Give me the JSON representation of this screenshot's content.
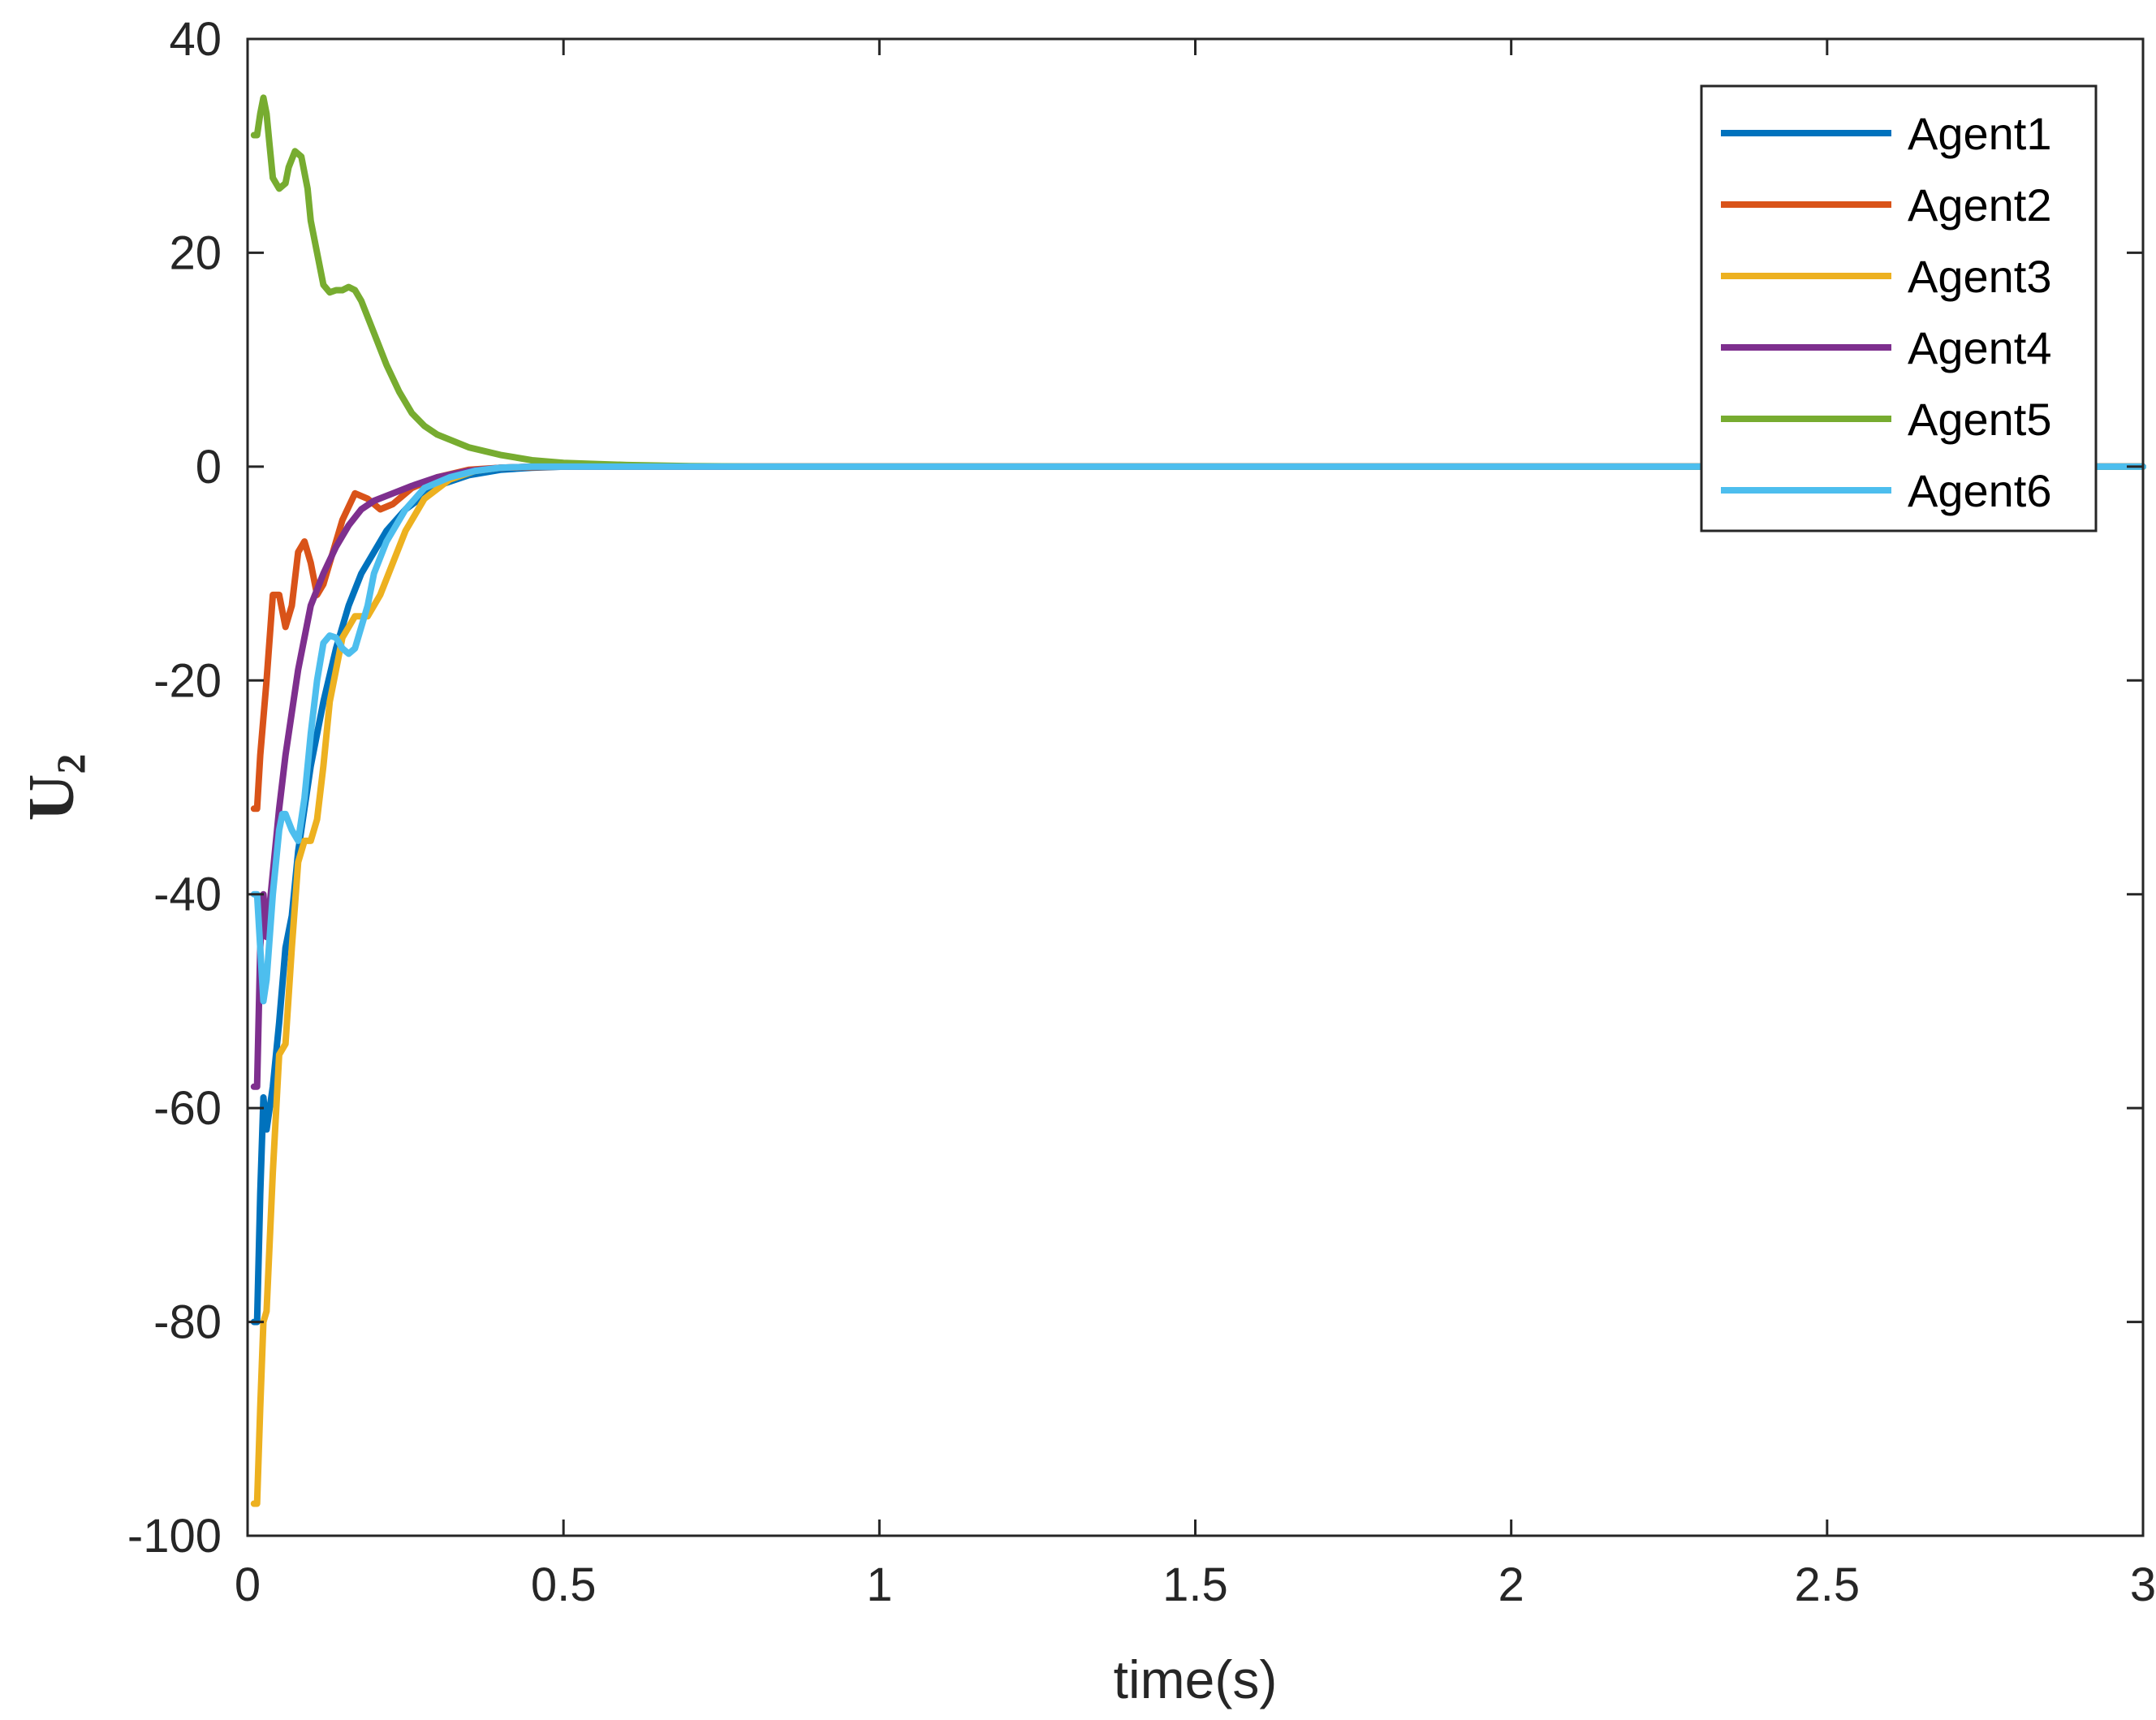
{
  "chart_data": {
    "type": "line",
    "xlabel": "time(s)",
    "ylabel": "U",
    "ylabel_subscript": "2",
    "xlim": [
      0,
      3
    ],
    "ylim": [
      -100,
      40
    ],
    "xticks": [
      0,
      0.5,
      1,
      1.5,
      2,
      2.5,
      3
    ],
    "xtick_labels": [
      "0",
      "0.5",
      "1",
      "1.5",
      "2",
      "2.5",
      "3"
    ],
    "yticks": [
      -100,
      -80,
      -60,
      -40,
      -20,
      0,
      20,
      40
    ],
    "ytick_labels": [
      "-100",
      "-80",
      "-60",
      "-40",
      "-20",
      "0",
      "20",
      "40"
    ],
    "grid": false,
    "legend_position": "top-right",
    "series": [
      {
        "name": "Agent1",
        "color": "#0072BD",
        "x": [
          0.01,
          0.015,
          0.02,
          0.025,
          0.03,
          0.04,
          0.05,
          0.06,
          0.07,
          0.08,
          0.1,
          0.12,
          0.14,
          0.16,
          0.18,
          0.2,
          0.22,
          0.25,
          0.3,
          0.35,
          0.4,
          0.45,
          0.5,
          0.6,
          0.7,
          0.8,
          1.0,
          1.5,
          2.0,
          2.5,
          3.0
        ],
        "y": [
          -80,
          -80,
          -68,
          -59,
          -62,
          -58,
          -52,
          -45,
          -42,
          -36,
          -28,
          -22,
          -17,
          -13,
          -10,
          -8,
          -6,
          -4,
          -1.8,
          -0.8,
          -0.3,
          -0.1,
          0,
          0,
          0,
          0,
          0,
          0,
          0,
          0,
          0
        ]
      },
      {
        "name": "Agent2",
        "color": "#D95319",
        "x": [
          0.01,
          0.015,
          0.02,
          0.03,
          0.04,
          0.05,
          0.06,
          0.07,
          0.08,
          0.09,
          0.1,
          0.11,
          0.12,
          0.13,
          0.15,
          0.17,
          0.19,
          0.21,
          0.23,
          0.26,
          0.3,
          0.35,
          0.4,
          0.5,
          0.6,
          1.0,
          2.0,
          3.0
        ],
        "y": [
          -32,
          -32,
          -27,
          -20,
          -12,
          -12,
          -15,
          -13,
          -8,
          -7,
          -9,
          -12,
          -11,
          -9,
          -5,
          -2.5,
          -3,
          -4,
          -3.5,
          -2,
          -1,
          -0.3,
          -0.1,
          0,
          0,
          0,
          0,
          0
        ]
      },
      {
        "name": "Agent3",
        "color": "#EDB120",
        "x": [
          0.01,
          0.015,
          0.02,
          0.025,
          0.03,
          0.04,
          0.05,
          0.06,
          0.07,
          0.08,
          0.09,
          0.1,
          0.11,
          0.12,
          0.13,
          0.15,
          0.17,
          0.19,
          0.21,
          0.23,
          0.25,
          0.28,
          0.32,
          0.36,
          0.4,
          0.45,
          0.5,
          0.6,
          1.0,
          2.0,
          3.0
        ],
        "y": [
          -97,
          -97,
          -88,
          -80,
          -79,
          -66,
          -55,
          -54,
          -45,
          -37,
          -35,
          -35,
          -33,
          -28,
          -22,
          -16,
          -14,
          -14,
          -12,
          -9,
          -6,
          -3,
          -1.2,
          -0.4,
          -0.1,
          0,
          0,
          0,
          0,
          0,
          0
        ]
      },
      {
        "name": "Agent4",
        "color": "#7E2F8E",
        "x": [
          0.01,
          0.015,
          0.02,
          0.025,
          0.03,
          0.04,
          0.05,
          0.06,
          0.07,
          0.08,
          0.1,
          0.12,
          0.14,
          0.16,
          0.18,
          0.2,
          0.23,
          0.26,
          0.3,
          0.35,
          0.4,
          0.45,
          0.5,
          0.6,
          1.0,
          2.0,
          3.0
        ],
        "y": [
          -58,
          -58,
          -45,
          -40,
          -44,
          -38,
          -32,
          -27,
          -23,
          -19,
          -13,
          -10,
          -7.5,
          -5.5,
          -4,
          -3.2,
          -2.5,
          -1.8,
          -1,
          -0.4,
          -0.1,
          0,
          0,
          0,
          0,
          0,
          0
        ]
      },
      {
        "name": "Agent5",
        "color": "#77AC30",
        "x": [
          0.01,
          0.015,
          0.02,
          0.025,
          0.03,
          0.035,
          0.04,
          0.05,
          0.06,
          0.065,
          0.075,
          0.085,
          0.095,
          0.1,
          0.11,
          0.12,
          0.13,
          0.14,
          0.15,
          0.16,
          0.17,
          0.18,
          0.2,
          0.22,
          0.24,
          0.26,
          0.28,
          0.3,
          0.35,
          0.4,
          0.45,
          0.5,
          0.6,
          0.7,
          0.8,
          1.0,
          2.0,
          3.0
        ],
        "y": [
          31,
          31,
          33,
          34.5,
          33,
          30,
          27,
          26,
          26.5,
          28,
          29.5,
          29,
          26,
          23,
          20,
          17,
          16.3,
          16.5,
          16.5,
          16.8,
          16.5,
          15.5,
          12.5,
          9.5,
          7,
          5,
          3.8,
          3,
          1.8,
          1.1,
          0.6,
          0.35,
          0.15,
          0.05,
          0,
          0,
          0,
          0
        ]
      },
      {
        "name": "Agent6",
        "color": "#4DBEEE",
        "x": [
          0.01,
          0.015,
          0.02,
          0.025,
          0.03,
          0.04,
          0.05,
          0.055,
          0.06,
          0.07,
          0.08,
          0.09,
          0.1,
          0.11,
          0.12,
          0.13,
          0.14,
          0.15,
          0.16,
          0.17,
          0.18,
          0.19,
          0.2,
          0.22,
          0.25,
          0.28,
          0.32,
          0.36,
          0.4,
          0.45,
          0.5,
          0.6,
          1.0,
          2.0,
          3.0
        ],
        "y": [
          -40,
          -40,
          -45,
          -50,
          -48,
          -40,
          -34,
          -32.5,
          -32.5,
          -34,
          -35,
          -31,
          -25,
          -20,
          -16.5,
          -15.8,
          -16,
          -17,
          -17.5,
          -17,
          -15,
          -13,
          -10,
          -7,
          -4,
          -2,
          -1,
          -0.4,
          -0.1,
          0,
          0,
          0,
          0,
          0,
          0
        ]
      }
    ]
  }
}
